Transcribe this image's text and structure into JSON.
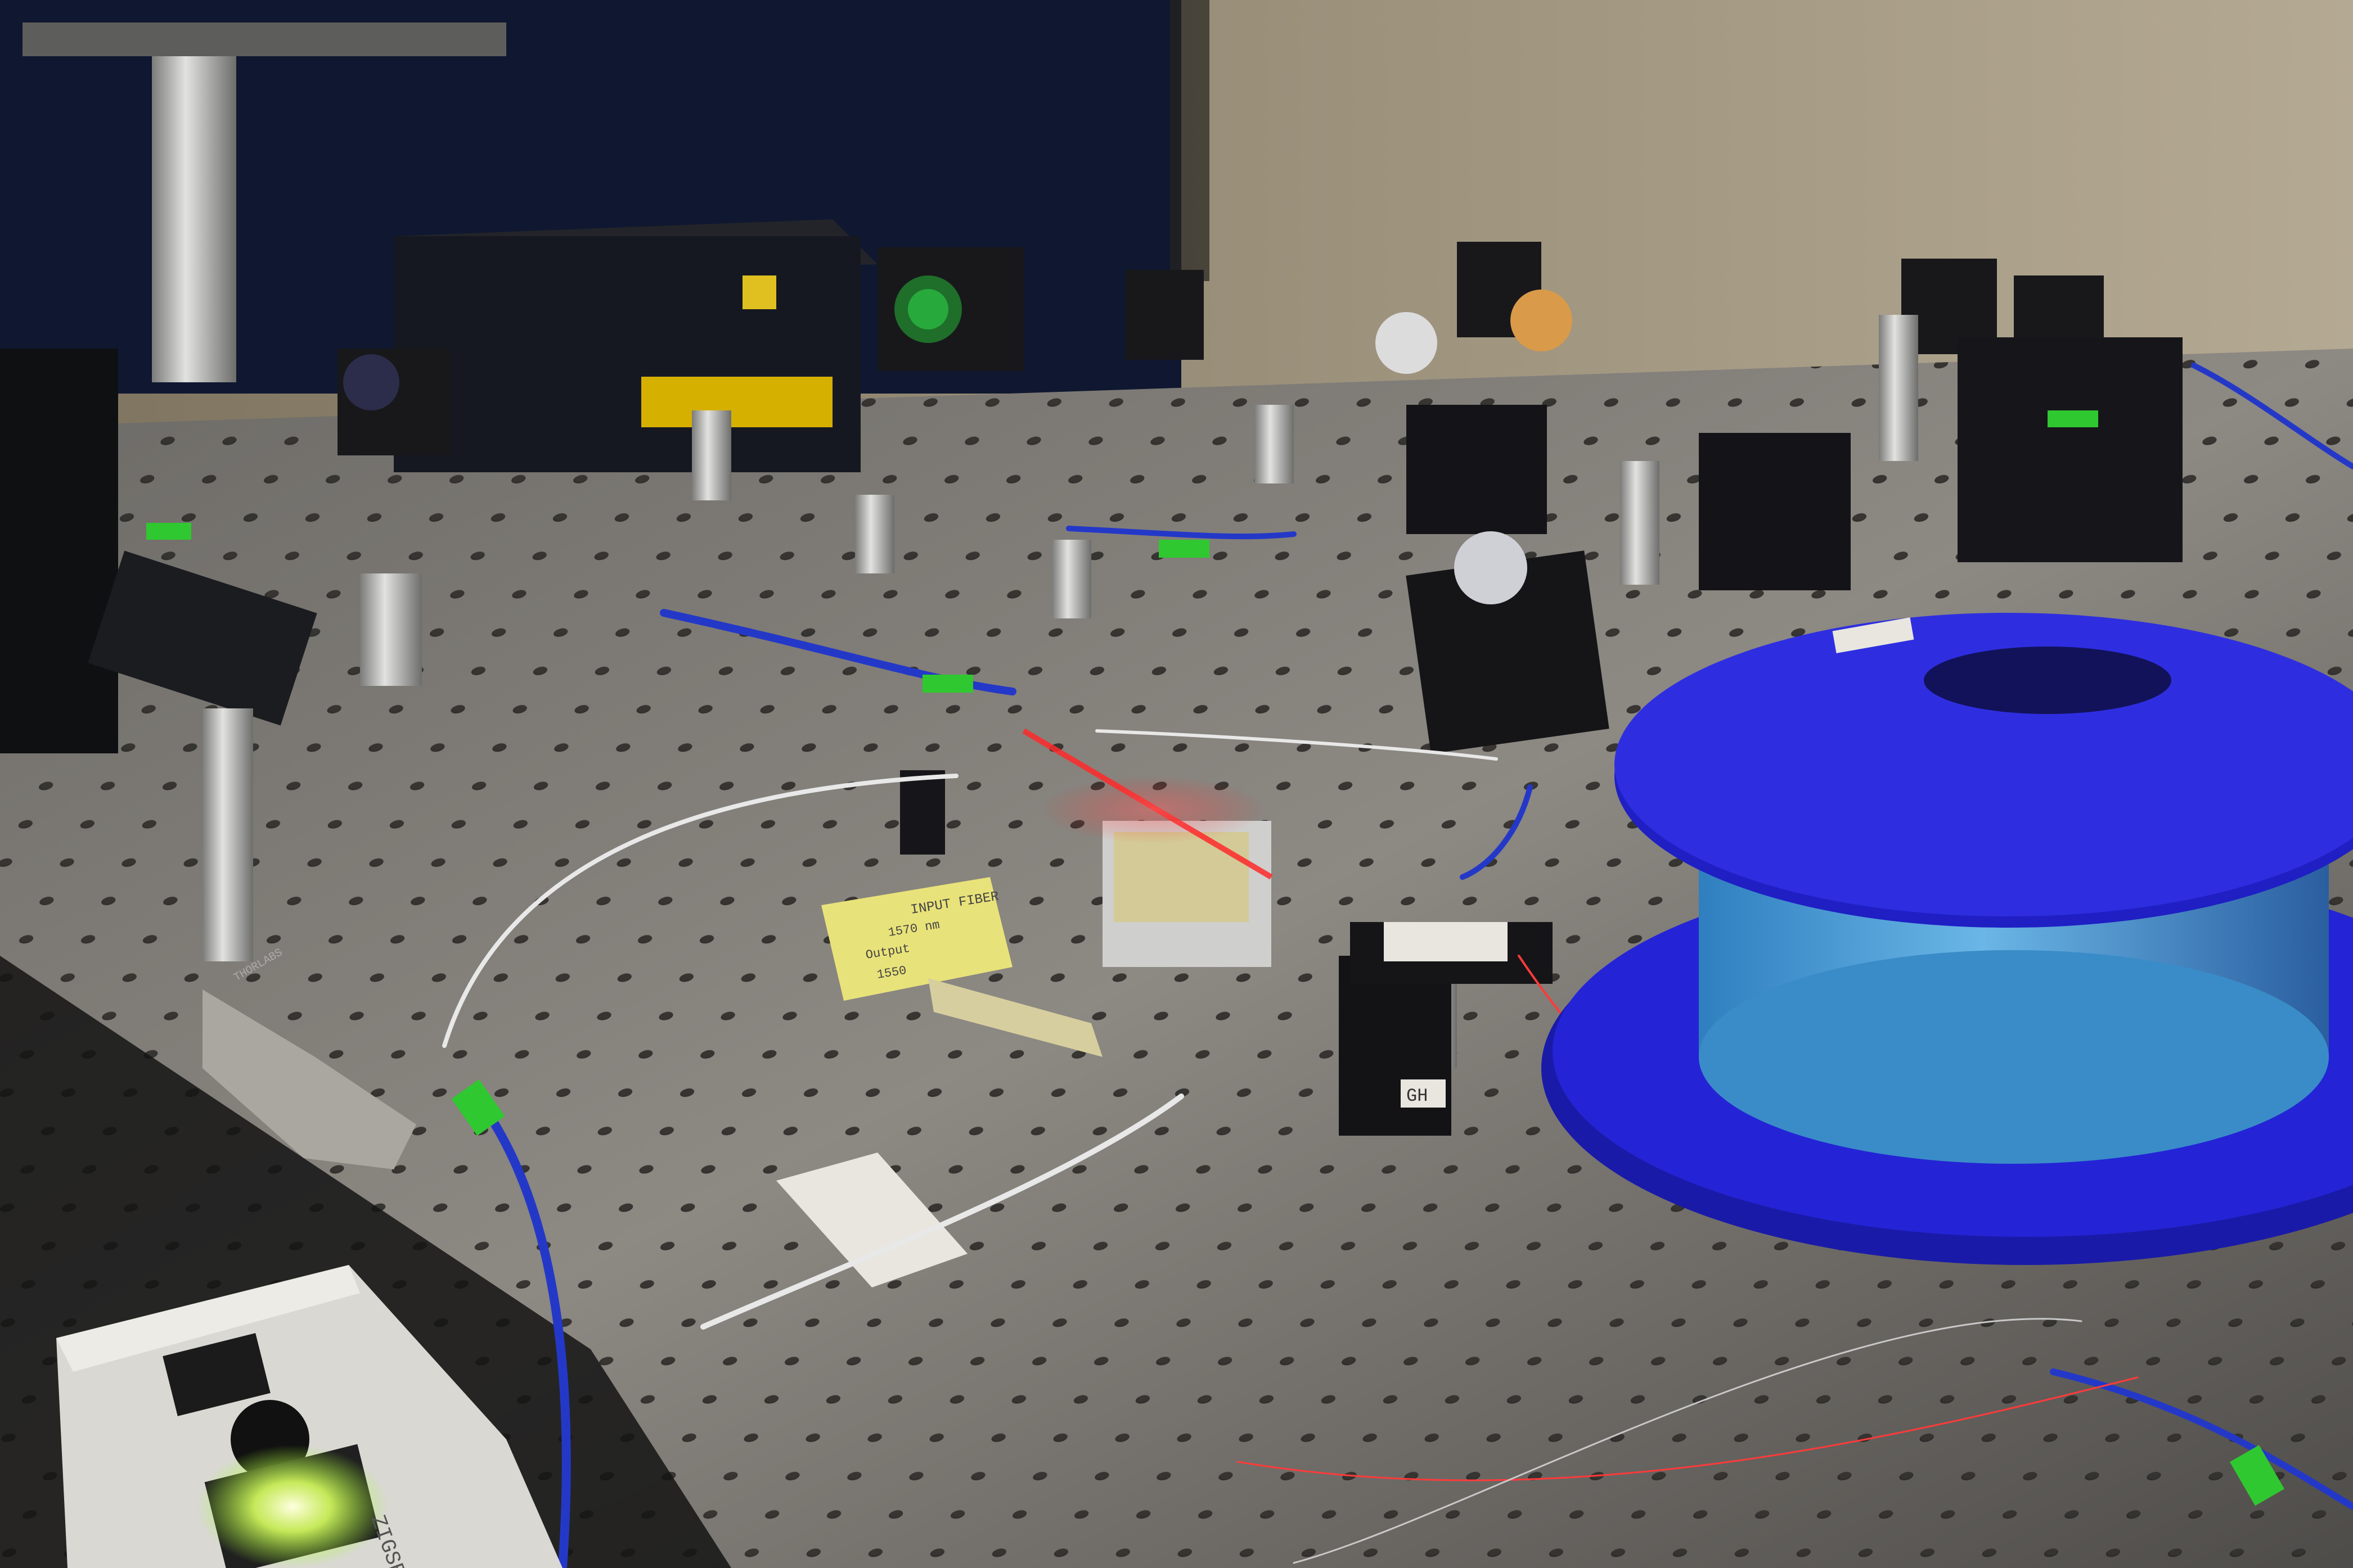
{
  "scene": {
    "palette": {
      "wall": "#a59a84",
      "curtain": "#0f1830",
      "table": "#77746f",
      "table_light": "#9a968f",
      "table_hole": "#2a2927",
      "anodized": "#151518",
      "post": "#c8c8c6",
      "spool_blue": "#2424d6",
      "spool_dark": "#0f0fa0",
      "fiber_core": "#4fa0d8",
      "fiber_jacket": "#2438c8",
      "connector_green": "#30c830",
      "laser_red": "#ff2a2a",
      "sticky_note": "#e8e27a",
      "tape": "#e8e6df",
      "brass": "#c9a24a",
      "led": "#f6ffb0"
    },
    "labels": {
      "knob_text": "THORLABS",
      "post_tag": "GH",
      "note_line1": "INPUT FIBER",
      "note_line2": "1570 nm",
      "note_line3": "Output",
      "note_line4": "1550",
      "driver_label": "ZIGSB"
    }
  }
}
